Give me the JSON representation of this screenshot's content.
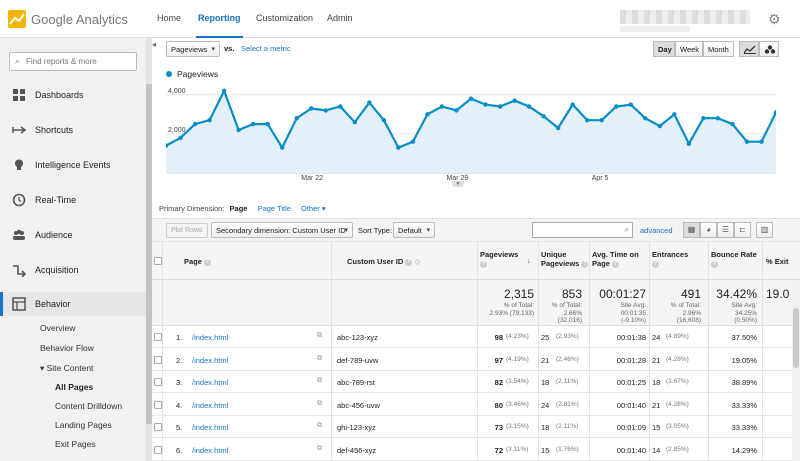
{
  "app": {
    "logo_text": "Google Analytics"
  },
  "topnav": [
    {
      "label": "Home"
    },
    {
      "label": "Reporting"
    },
    {
      "label": "Customization"
    },
    {
      "label": "Admin"
    }
  ],
  "sidebar": {
    "search_placeholder": "Find reports & more",
    "items": [
      {
        "label": "Dashboards",
        "icon": "dashboard-icon"
      },
      {
        "label": "Shortcuts",
        "icon": "shortcut-arrow-icon"
      },
      {
        "label": "Intelligence Events",
        "icon": "lightbulb-icon"
      },
      {
        "label": "Real-Time",
        "icon": "clock-icon"
      },
      {
        "label": "Audience",
        "icon": "people-icon"
      },
      {
        "label": "Acquisition",
        "icon": "acquisition-icon"
      },
      {
        "label": "Behavior",
        "icon": "behavior-icon"
      }
    ],
    "sub": {
      "overview": "Overview",
      "behavior_flow": "Behavior Flow",
      "site_content": "▾ Site Content",
      "all_pages": "All Pages",
      "content_drilldown": "Content Drilldown",
      "landing_pages": "Landing Pages",
      "exit_pages": "Exit Pages"
    }
  },
  "controls": {
    "metric": "Pageviews",
    "vs": "vs.",
    "select_metric": "Select a metric",
    "day": "Day",
    "week": "Week",
    "month": "Month"
  },
  "chart_data": {
    "type": "line",
    "series": [
      {
        "name": "Pageviews",
        "values": [
          1400,
          1800,
          2500,
          2700,
          4200,
          2200,
          2500,
          2500,
          1300,
          2800,
          3300,
          3200,
          3400,
          2600,
          3600,
          2700,
          1300,
          1600,
          3000,
          3400,
          3200,
          3800,
          3500,
          3400,
          3700,
          3400,
          2900,
          2300,
          3500,
          2700,
          2700,
          3400,
          3500,
          2800,
          2400,
          3000,
          1500,
          2800,
          2800,
          2500,
          1600,
          1600,
          3100
        ]
      }
    ],
    "x_ticks": [
      "Mar 22",
      "Mar 29",
      "Apr 5"
    ],
    "y_ticks": [
      "4,000",
      "2,000"
    ],
    "ylim": [
      0,
      4500
    ],
    "grid": true,
    "color": "#058dc7"
  },
  "primary_dimension": {
    "label": "Primary Dimension:",
    "active": "Page",
    "page_title": "Page Title",
    "other": "Other ▾"
  },
  "toolbar": {
    "plot_rows": "Plot Rows",
    "secondary_dimension": "Secondary dimension: Custom User ID",
    "sort_type_label": "Sort Type:",
    "sort_type": "Default",
    "advanced": "advanced"
  },
  "table": {
    "headers": {
      "page": "Page",
      "custom_user_id": "Custom User ID",
      "pageviews": "Pageviews",
      "unique_pageviews": "Unique Pageviews",
      "avg_time": "Avg. Time on Page",
      "entrances": "Entrances",
      "bounce_rate": "Bounce Rate",
      "exit": "% Exit"
    },
    "summary": {
      "pageviews": "2,315",
      "pageviews_sub": [
        "% of Total:",
        "2.93% (79,133)"
      ],
      "unique": "853",
      "unique_sub": [
        "% of Total:",
        "2.66%",
        "(32,016)"
      ],
      "avg_time": "00:01:27",
      "avg_time_sub": [
        "Site Avg:",
        "00:01:35",
        "(-9.10%)"
      ],
      "entrances": "491",
      "entrances_sub": [
        "% of Total:",
        "2.96%",
        "(16,608)"
      ],
      "bounce": "34.42%",
      "bounce_sub": [
        "Site Avg:",
        "34.25%",
        "(0.50%)"
      ],
      "exit": "19.0"
    },
    "rows": [
      {
        "num": "1.",
        "page": "/index.html",
        "uid": "abc-123-xyz",
        "pv": "98",
        "pv_pct": "(4.23%)",
        "upv": "25",
        "upv_pct": "(2.93%)",
        "time": "00:01:38",
        "ent": "24",
        "ent_pct": "(4.89%)",
        "bounce": "37.50%"
      },
      {
        "num": "2.",
        "page": "/index.html",
        "uid": "def-789-uvw",
        "pv": "97",
        "pv_pct": "(4.19%)",
        "upv": "21",
        "upv_pct": "(2.46%)",
        "time": "00:01:28",
        "ent": "21",
        "ent_pct": "(4.28%)",
        "bounce": "19.05%"
      },
      {
        "num": "3.",
        "page": "/index.html",
        "uid": "abc-789-rst",
        "pv": "82",
        "pv_pct": "(3.54%)",
        "upv": "18",
        "upv_pct": "(2.11%)",
        "time": "00:01:25",
        "ent": "18",
        "ent_pct": "(3.67%)",
        "bounce": "38.89%"
      },
      {
        "num": "4.",
        "page": "/index.html",
        "uid": "abc-456-uvw",
        "pv": "80",
        "pv_pct": "(3.46%)",
        "upv": "24",
        "upv_pct": "(2.81%)",
        "time": "00:01:40",
        "ent": "21",
        "ent_pct": "(4.28%)",
        "bounce": "33.33%"
      },
      {
        "num": "5.",
        "page": "/index.html",
        "uid": "ghi-123-xyz",
        "pv": "73",
        "pv_pct": "(3.15%)",
        "upv": "18",
        "upv_pct": "(2.11%)",
        "time": "00:01:09",
        "ent": "15",
        "ent_pct": "(3.05%)",
        "bounce": "33.33%"
      },
      {
        "num": "6.",
        "page": "/index.html",
        "uid": "def-456-xyz",
        "pv": "72",
        "pv_pct": "(3.11%)",
        "upv": "15",
        "upv_pct": "(1.76%)",
        "time": "00:01:40",
        "ent": "14",
        "ent_pct": "(2.85%)",
        "bounce": "14.29%"
      }
    ]
  },
  "colors": {
    "accent": "#1a73c8",
    "series": "#058dc7",
    "fill": "#e3f0f8",
    "logo": "#f4b400"
  }
}
